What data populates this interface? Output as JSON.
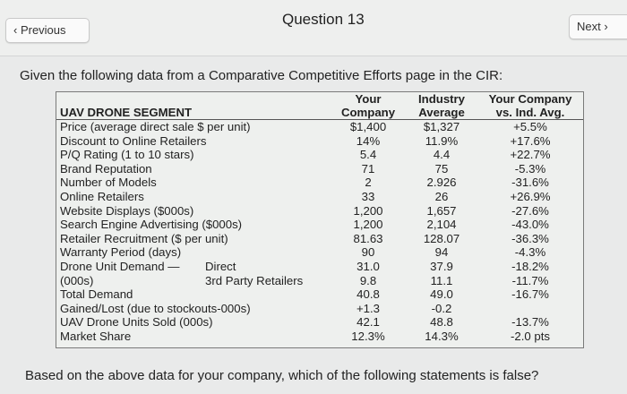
{
  "header": {
    "previous_label": "‹ Previous",
    "title": "Question 13",
    "next_label": "Next ›"
  },
  "intro": "Given the following data from a Comparative Competitive Efforts page in the CIR:",
  "table": {
    "headers": [
      "UAV DRONE SEGMENT",
      [
        "Your",
        "Company"
      ],
      [
        "Industry",
        "Average"
      ],
      [
        "Your Company",
        "vs. Ind. Avg."
      ]
    ],
    "rows": [
      {
        "label": "Price (average direct sale $ per unit)",
        "yours": "$1,400",
        "industry": "$1,327",
        "vs": "+5.5%"
      },
      {
        "label": "Discount to Online Retailers",
        "yours": "14%",
        "industry": "11.9%",
        "vs": "+17.6%"
      },
      {
        "label": "P/Q Rating (1 to 10 stars)",
        "yours": "5.4",
        "industry": "4.4",
        "vs": "+22.7%"
      },
      {
        "label": "Brand Reputation",
        "yours": "71",
        "industry": "75",
        "vs": "-5.3%"
      },
      {
        "label": "Number of Models",
        "yours": "2",
        "industry": "2.926",
        "vs": "-31.6%"
      },
      {
        "label": "Online Retailers",
        "yours": "33",
        "industry": "26",
        "vs": "+26.9%"
      },
      {
        "label": "Website Displays ($000s)",
        "yours": "1,200",
        "industry": "1,657",
        "vs": "-27.6%"
      },
      {
        "label": "Search Engine Advertising ($000s)",
        "yours": "1,200",
        "industry": "2,104",
        "vs": "-43.0%"
      },
      {
        "label": "Retailer Recruitment ($ per unit)",
        "yours": "81.63",
        "industry": "128.07",
        "vs": "-36.3%"
      },
      {
        "label": "Warranty Period (days)",
        "yours": "90",
        "industry": "94",
        "vs": "-4.3%"
      },
      {
        "label": "Drone Unit Demand —",
        "sub": "Direct",
        "yours": "31.0",
        "industry": "37.9",
        "vs": "-18.2%"
      },
      {
        "label": "(000s)",
        "sub": "3rd Party Retailers",
        "yours": "9.8",
        "industry": "11.1",
        "vs": "-11.7%"
      },
      {
        "label": "Total Demand",
        "yours": "40.8",
        "industry": "49.0",
        "vs": "-16.7%"
      },
      {
        "label": "Gained/Lost (due to stockouts-000s)",
        "yours": "+1.3",
        "industry": "-0.2",
        "vs": ""
      },
      {
        "label": "UAV Drone Units Sold (000s)",
        "yours": "42.1",
        "industry": "48.8",
        "vs": "-13.7%"
      },
      {
        "label": "Market Share",
        "yours": "12.3%",
        "industry": "14.3%",
        "vs": "-2.0 pts"
      }
    ]
  },
  "question": "Based on the above data for your company, which of the following statements is false?"
}
